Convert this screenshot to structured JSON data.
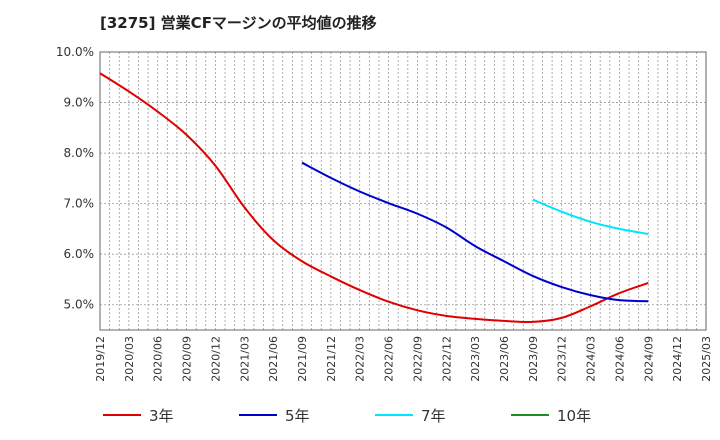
{
  "title": "[3275]  営業CFマージンの平均値の推移",
  "chart_data": {
    "type": "line",
    "title": "[3275]  営業CFマージンの平均値の推移",
    "xlabel": "",
    "ylabel": "",
    "ylim": [
      4.5,
      10.0
    ],
    "y_ticks": [
      "10.0%",
      "9.0%",
      "8.0%",
      "7.0%",
      "6.0%",
      "5.0%"
    ],
    "y_tick_values": [
      10.0,
      9.0,
      8.0,
      7.0,
      6.0,
      5.0
    ],
    "x_ticks": [
      "2019/12",
      "2020/03",
      "2020/06",
      "2020/09",
      "2020/12",
      "2021/03",
      "2021/06",
      "2021/09",
      "2021/12",
      "2022/03",
      "2022/06",
      "2022/09",
      "2022/12",
      "2023/03",
      "2023/06",
      "2023/09",
      "2023/12",
      "2024/03",
      "2024/06",
      "2024/09",
      "2024/12",
      "2025/03"
    ],
    "x_ticks_minor_monthly": true,
    "grid": true,
    "legend_position": "bottom",
    "series": [
      {
        "name": "3年",
        "color": "#e00000",
        "x": [
          "2019/12",
          "2020/03",
          "2020/06",
          "2020/09",
          "2020/12",
          "2021/03",
          "2021/06",
          "2021/09",
          "2021/12",
          "2022/03",
          "2022/06",
          "2022/09",
          "2022/12",
          "2023/03",
          "2023/06",
          "2023/09",
          "2023/12",
          "2024/03",
          "2024/06",
          "2024/09"
        ],
        "values": [
          9.58,
          9.22,
          8.82,
          8.36,
          7.75,
          6.93,
          6.28,
          5.86,
          5.56,
          5.29,
          5.06,
          4.89,
          4.78,
          4.72,
          4.68,
          4.66,
          4.74,
          4.97,
          5.23,
          5.43
        ]
      },
      {
        "name": "5年",
        "color": "#0000cc",
        "x": [
          "2021/09",
          "2021/12",
          "2022/03",
          "2022/06",
          "2022/09",
          "2022/12",
          "2023/03",
          "2023/06",
          "2023/09",
          "2023/12",
          "2024/03",
          "2024/06",
          "2024/09"
        ],
        "values": [
          7.81,
          7.51,
          7.24,
          7.01,
          6.8,
          6.53,
          6.16,
          5.86,
          5.57,
          5.35,
          5.19,
          5.09,
          5.07
        ]
      },
      {
        "name": "7年",
        "color": "#00e5ff",
        "x": [
          "2023/09",
          "2023/12",
          "2024/03",
          "2024/06",
          "2024/09"
        ],
        "values": [
          7.08,
          6.84,
          6.64,
          6.5,
          6.4
        ]
      },
      {
        "name": "10年",
        "color": "#228b22",
        "x": [],
        "values": []
      }
    ]
  }
}
